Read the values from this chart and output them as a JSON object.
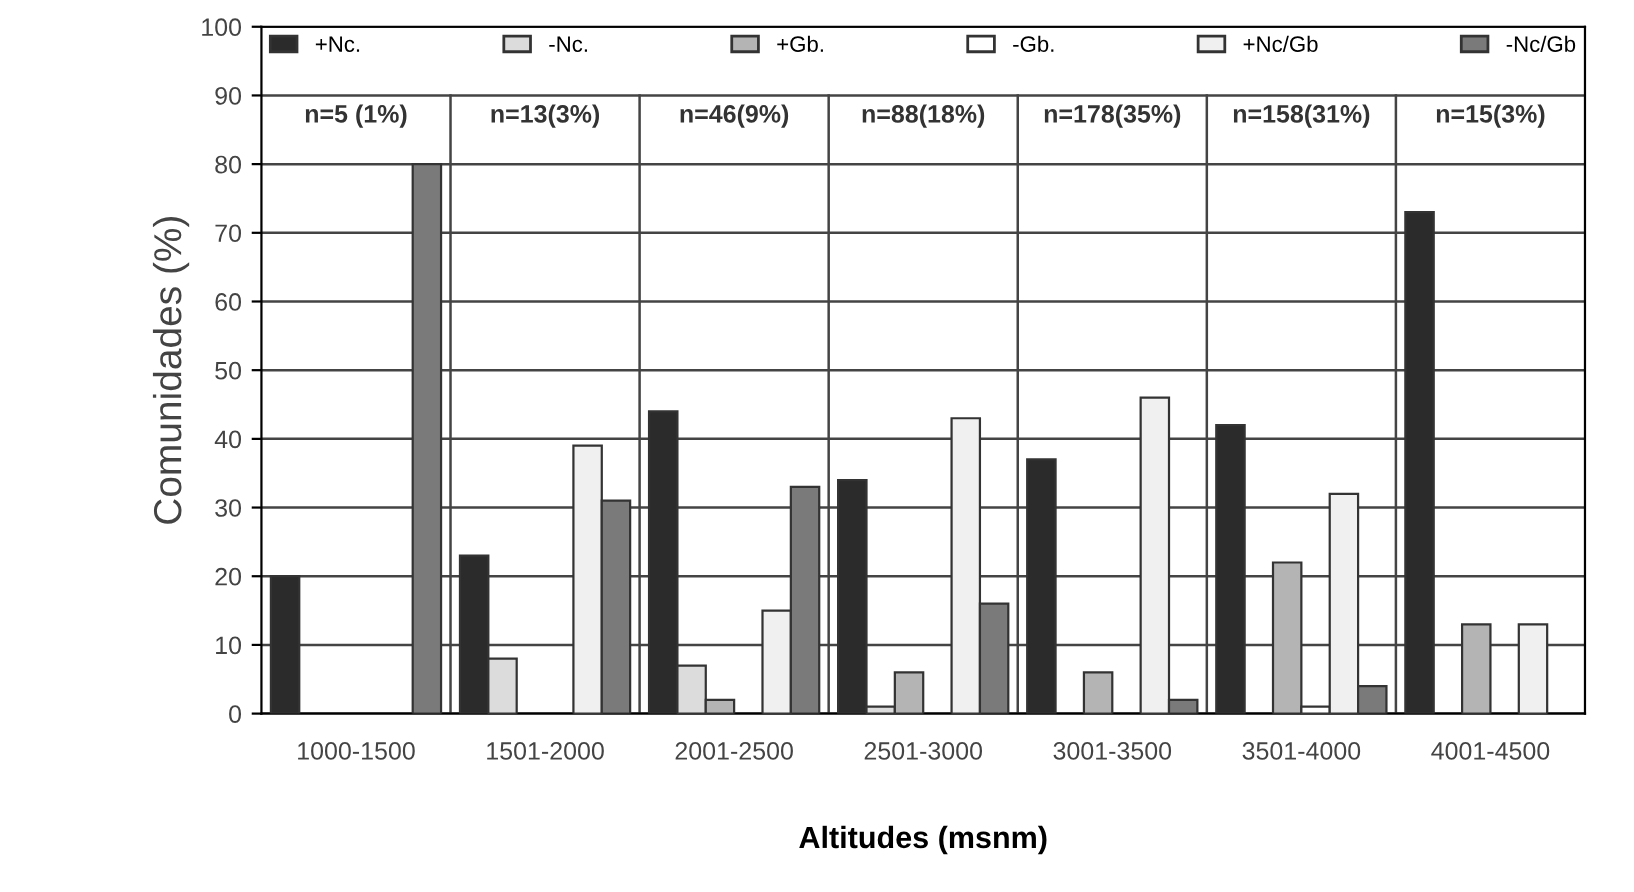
{
  "chart_data": {
    "type": "bar",
    "xlabel": "Altitudes (msnm)",
    "ylabel": "Comunidades (%)",
    "categories": [
      "1000-1500",
      "1501-2000",
      "2001-2500",
      "2501-3000",
      "3001-3500",
      "3501-4000",
      "4001-4500"
    ],
    "series": [
      {
        "name": "+Nc.",
        "color": "#2b2b2b",
        "values": [
          20,
          23,
          44,
          34,
          37,
          42,
          73
        ]
      },
      {
        "name": "-Nc.",
        "color": "#dcdcdc",
        "values": [
          null,
          8,
          7,
          1,
          null,
          null,
          null
        ]
      },
      {
        "name": "+Gb.",
        "color": "#b4b4b4",
        "values": [
          null,
          null,
          2,
          6,
          6,
          22,
          13
        ]
      },
      {
        "name": "-Gb.",
        "color": "#ffffff",
        "values": [
          null,
          null,
          null,
          null,
          null,
          1,
          null
        ]
      },
      {
        "name": "+Nc/Gb",
        "color": "#f0f0f0",
        "values": [
          null,
          39,
          15,
          43,
          46,
          32,
          13
        ]
      },
      {
        "name": "-Nc/Gb",
        "color": "#7a7a7a",
        "values": [
          80,
          31,
          33,
          16,
          2,
          4,
          null
        ]
      }
    ],
    "annotations": [
      "n=5 (1%)",
      "n=13(3%)",
      "n=46(9%)",
      "n=88(18%)",
      "n=178(35%)",
      "n=158(31%)",
      "n=15(3%)"
    ],
    "ylim": [
      0,
      100
    ],
    "yticks": [
      0,
      10,
      20,
      30,
      40,
      50,
      60,
      70,
      80,
      90,
      100
    ],
    "grid": "y",
    "legend": "top"
  }
}
